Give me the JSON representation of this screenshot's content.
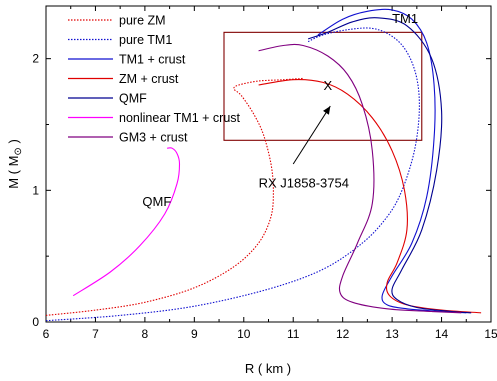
{
  "chart_data": {
    "type": "line",
    "xlabel": "R ( km )",
    "ylabel": "M (  M",
    "ylabel_symbol": "⊙",
    "ylabel_close": " )",
    "xlim": [
      6,
      15
    ],
    "ylim": [
      0,
      2.4
    ],
    "xticks": [
      6,
      7,
      8,
      9,
      10,
      11,
      12,
      13,
      14,
      15
    ],
    "yticks": [
      0,
      1,
      2
    ],
    "grid": false,
    "legend_position": "top-left",
    "series": [
      {
        "name": "pure ZM",
        "color": "#e00000",
        "dash": "dotted",
        "points": [
          [
            6.0,
            0.05
          ],
          [
            7.0,
            0.09
          ],
          [
            8.0,
            0.15
          ],
          [
            9.0,
            0.26
          ],
          [
            9.8,
            0.42
          ],
          [
            10.3,
            0.6
          ],
          [
            10.55,
            0.8
          ],
          [
            10.6,
            1.0
          ],
          [
            10.55,
            1.2
          ],
          [
            10.4,
            1.42
          ],
          [
            10.2,
            1.58
          ],
          [
            9.95,
            1.72
          ],
          [
            9.8,
            1.77
          ],
          [
            9.9,
            1.8
          ],
          [
            10.3,
            1.83
          ],
          [
            10.8,
            1.84
          ],
          [
            11.2,
            1.85
          ]
        ]
      },
      {
        "name": "pure TM1",
        "color": "#1010d0",
        "dash": "dotted",
        "points": [
          [
            6.0,
            0.01
          ],
          [
            7.5,
            0.05
          ],
          [
            9.0,
            0.12
          ],
          [
            10.5,
            0.25
          ],
          [
            11.6,
            0.4
          ],
          [
            12.4,
            0.6
          ],
          [
            12.9,
            0.8
          ],
          [
            13.2,
            1.0
          ],
          [
            13.45,
            1.3
          ],
          [
            13.55,
            1.6
          ],
          [
            13.5,
            1.85
          ],
          [
            13.3,
            2.05
          ],
          [
            13.0,
            2.17
          ],
          [
            12.6,
            2.23
          ],
          [
            12.1,
            2.22
          ],
          [
            11.6,
            2.18
          ],
          [
            11.3,
            2.13
          ]
        ]
      },
      {
        "name": "TM1 + crust",
        "color": "#1010d0",
        "dash": "solid",
        "points": [
          [
            11.5,
            2.18
          ],
          [
            12.0,
            2.3
          ],
          [
            12.5,
            2.36
          ],
          [
            13.0,
            2.37
          ],
          [
            13.4,
            2.3
          ],
          [
            13.7,
            2.12
          ],
          [
            13.85,
            1.8
          ],
          [
            13.85,
            1.4
          ],
          [
            13.7,
            0.95
          ],
          [
            13.4,
            0.6
          ],
          [
            13.0,
            0.35
          ],
          [
            12.8,
            0.2
          ],
          [
            12.9,
            0.13
          ],
          [
            13.3,
            0.1
          ],
          [
            14.0,
            0.08
          ],
          [
            14.5,
            0.07
          ]
        ]
      },
      {
        "name": "ZM  + crust",
        "color": "#e00000",
        "dash": "solid",
        "points": [
          [
            10.3,
            1.8
          ],
          [
            11.0,
            1.84
          ],
          [
            11.6,
            1.82
          ],
          [
            12.1,
            1.73
          ],
          [
            12.6,
            1.55
          ],
          [
            13.0,
            1.3
          ],
          [
            13.25,
            1.0
          ],
          [
            13.3,
            0.7
          ],
          [
            13.1,
            0.45
          ],
          [
            12.9,
            0.3
          ],
          [
            12.95,
            0.2
          ],
          [
            13.3,
            0.13
          ],
          [
            14.0,
            0.09
          ],
          [
            14.8,
            0.07
          ]
        ]
      },
      {
        "name": "QMF",
        "color": "#000090",
        "dash": "solid",
        "points": [
          [
            11.3,
            2.15
          ],
          [
            11.7,
            2.2
          ],
          [
            12.2,
            2.28
          ],
          [
            12.7,
            2.31
          ],
          [
            13.3,
            2.25
          ],
          [
            13.8,
            2.0
          ],
          [
            14.0,
            1.6
          ],
          [
            13.9,
            1.15
          ],
          [
            13.6,
            0.7
          ],
          [
            13.2,
            0.4
          ],
          [
            13.0,
            0.25
          ],
          [
            13.1,
            0.17
          ],
          [
            13.5,
            0.11
          ],
          [
            14.2,
            0.08
          ],
          [
            14.6,
            0.07
          ]
        ]
      },
      {
        "name": "nonlinear TM1 + crust",
        "color": "#ff00ff",
        "dash": "solid",
        "points": [
          [
            6.55,
            0.2
          ],
          [
            7.3,
            0.38
          ],
          [
            7.9,
            0.58
          ],
          [
            8.4,
            0.82
          ],
          [
            8.65,
            1.05
          ],
          [
            8.7,
            1.2
          ],
          [
            8.65,
            1.28
          ],
          [
            8.55,
            1.32
          ],
          [
            8.45,
            1.32
          ]
        ]
      },
      {
        "name": "GM3 + crust",
        "color": "#800080",
        "dash": "solid",
        "points": [
          [
            10.3,
            2.06
          ],
          [
            10.8,
            2.1
          ],
          [
            11.2,
            2.1
          ],
          [
            11.7,
            2.02
          ],
          [
            12.1,
            1.88
          ],
          [
            12.4,
            1.65
          ],
          [
            12.6,
            1.3
          ],
          [
            12.6,
            0.9
          ],
          [
            12.3,
            0.6
          ],
          [
            12.0,
            0.35
          ],
          [
            11.95,
            0.22
          ],
          [
            12.2,
            0.15
          ],
          [
            12.9,
            0.1
          ],
          [
            13.8,
            0.08
          ],
          [
            14.4,
            0.07
          ]
        ]
      }
    ],
    "box": {
      "x": [
        9.6,
        13.6
      ],
      "y": [
        1.38,
        2.2
      ],
      "color": "#800000"
    },
    "annotations": [
      {
        "label": "TM1",
        "x": 13.0,
        "y": 2.27
      },
      {
        "label": "QMF",
        "x": 7.95,
        "y": 0.88
      },
      {
        "label": "RX J1858-3754",
        "x": 10.3,
        "y": 1.02
      }
    ],
    "marker": {
      "label": "X",
      "x": 11.7,
      "y": 1.8
    },
    "arrow": {
      "from": [
        11.0,
        1.2
      ],
      "to": [
        11.75,
        1.64
      ]
    }
  }
}
